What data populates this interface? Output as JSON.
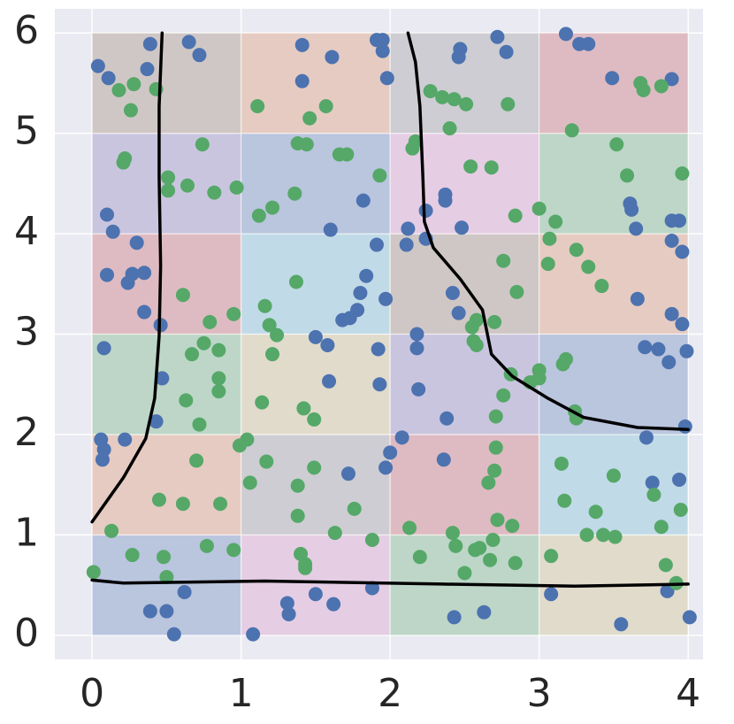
{
  "chart_data": {
    "type": "scatter",
    "xlim": [
      -0.25,
      4.1
    ],
    "ylim": [
      -0.24,
      6.24
    ],
    "xticks": [
      0,
      1,
      2,
      3,
      4
    ],
    "yticks": [
      0,
      1,
      2,
      3,
      4,
      5,
      6
    ],
    "grid": true,
    "background": "#eaeaf2",
    "cell_colors": [
      [
        "#4c72b0",
        "#da8bc3",
        "#55a868",
        "#ccb974"
      ],
      [
        "#dd8452",
        "#8c8c8c",
        "#c44e52",
        "#64b5cd"
      ],
      [
        "#55a868",
        "#ccb974",
        "#8172b3",
        "#4c72b0"
      ],
      [
        "#c44e52",
        "#64b5cd",
        "#937860",
        "#dd8452"
      ],
      [
        "#8172b3",
        "#4c72b0",
        "#da8bc3",
        "#55a868"
      ],
      [
        "#937860",
        "#dd8452",
        "#8c8c8c",
        "#c44e52"
      ]
    ],
    "series": [
      {
        "color": "#4c72b0",
        "x": [
          0.04,
          0.11,
          0.39,
          0.37,
          0.65,
          0.72,
          1.41,
          1.41,
          1.61,
          1.91,
          1.95,
          1.95,
          1.98,
          2.47,
          2.46,
          2.72,
          2.78,
          3.18,
          3.27,
          3.33,
          3.49,
          3.89,
          0.1,
          0.14,
          0.3,
          0.1,
          0.27,
          0.24,
          0.35,
          0.35,
          0.46,
          0.08,
          0.47,
          0.43,
          0.06,
          0.08,
          0.07,
          0.22,
          1.82,
          1.6,
          1.91,
          1.84,
          1.8,
          1.78,
          1.73,
          1.68,
          1.97,
          1.5,
          1.58,
          1.92,
          1.59,
          1.93,
          2.08,
          2.0,
          1.97,
          1.72,
          2.24,
          2.12,
          2.24,
          2.11,
          2.37,
          2.37,
          2.48,
          2.42,
          2.46,
          2.18,
          2.18,
          2.19,
          2.38,
          2.36,
          3.65,
          3.62,
          3.61,
          3.89,
          3.94,
          3.89,
          3.96,
          3.66,
          3.89,
          3.96,
          3.71,
          3.8,
          3.87,
          3.99,
          3.98,
          3.72,
          3.76,
          3.94,
          0.62,
          0.39,
          0.5,
          0.55,
          1.08,
          1.31,
          1.32,
          1.5,
          1.62,
          1.88,
          2.43,
          2.63,
          3.08,
          3.55,
          3.86,
          4.01
        ],
        "y": [
          5.67,
          5.55,
          5.89,
          5.64,
          5.91,
          5.78,
          5.88,
          5.52,
          5.76,
          5.93,
          5.93,
          5.82,
          5.55,
          5.84,
          5.76,
          5.96,
          5.81,
          5.99,
          5.89,
          5.89,
          5.55,
          5.54,
          4.19,
          4.02,
          3.91,
          3.59,
          3.6,
          3.51,
          3.61,
          3.22,
          3.09,
          2.86,
          2.56,
          2.13,
          1.95,
          1.85,
          1.75,
          1.95,
          4.33,
          4.04,
          3.89,
          3.58,
          3.41,
          3.24,
          3.16,
          3.14,
          3.35,
          2.97,
          2.89,
          2.85,
          2.53,
          2.5,
          1.97,
          1.82,
          1.67,
          1.61,
          4.23,
          4.05,
          3.95,
          3.89,
          4.39,
          4.33,
          4.06,
          3.41,
          3.21,
          3.0,
          2.86,
          2.45,
          2.16,
          1.75,
          4.05,
          4.24,
          4.3,
          4.13,
          4.13,
          3.93,
          3.82,
          3.35,
          3.2,
          3.1,
          2.87,
          2.85,
          2.72,
          2.83,
          2.08,
          1.97,
          1.52,
          1.55,
          0.43,
          0.24,
          0.24,
          0.01,
          0.01,
          0.32,
          0.21,
          0.41,
          0.31,
          0.47,
          0.18,
          0.23,
          0.41,
          0.11,
          0.44,
          0.18
        ]
      },
      {
        "color": "#55a868",
        "x": [
          0.18,
          0.28,
          0.26,
          0.43,
          1.11,
          1.46,
          1.57,
          2.27,
          2.35,
          2.43,
          2.51,
          2.4,
          2.79,
          3.22,
          3.68,
          3.7,
          3.82,
          0.21,
          0.22,
          0.51,
          0.51,
          0.64,
          0.74,
          0.82,
          0.97,
          1.38,
          1.44,
          1.66,
          1.71,
          1.36,
          1.21,
          1.12,
          1.93,
          2.15,
          2.17,
          2.54,
          2.68,
          2.84,
          3.0,
          3.11,
          3.07,
          3.06,
          3.25,
          3.33,
          3.42,
          3.52,
          3.59,
          3.96,
          0.61,
          0.79,
          0.95,
          1.37,
          1.16,
          1.19,
          1.24,
          1.21,
          2.76,
          2.85,
          2.58,
          2.55,
          2.7,
          2.56,
          2.58,
          0.67,
          0.75,
          0.85,
          0.85,
          0.85,
          0.63,
          0.72,
          1.14,
          1.42,
          1.49,
          2.81,
          2.76,
          2.71,
          2.94,
          3.0,
          3.0,
          3.16,
          3.18,
          3.24,
          3.25,
          0.7,
          0.99,
          1.04,
          1.17,
          1.06,
          1.38,
          1.49,
          1.38,
          1.76,
          0.45,
          0.61,
          0.86,
          2.71,
          2.7,
          2.66,
          2.72,
          2.82,
          3.15,
          3.17,
          3.38,
          3.5,
          3.77,
          3.82,
          3.95,
          3.32,
          3.43,
          3.51,
          0.13,
          0.01,
          0.27,
          0.48,
          0.5,
          0.77,
          0.95,
          1.4,
          1.43,
          1.43,
          1.63,
          1.88,
          2.13,
          2.2,
          2.42,
          2.44,
          2.57,
          2.6,
          2.69,
          2.5,
          2.67,
          2.84,
          3.08,
          3.85,
          3.92
        ],
        "y": [
          5.43,
          5.49,
          5.23,
          5.44,
          5.27,
          5.15,
          5.27,
          5.42,
          5.36,
          5.34,
          5.29,
          5.05,
          5.29,
          5.03,
          5.5,
          5.43,
          5.47,
          4.71,
          4.75,
          4.56,
          4.43,
          4.48,
          4.89,
          4.41,
          4.46,
          4.9,
          4.89,
          4.79,
          4.79,
          4.4,
          4.26,
          4.18,
          4.58,
          4.85,
          4.92,
          4.67,
          4.66,
          4.18,
          4.25,
          4.12,
          3.95,
          3.7,
          3.84,
          3.67,
          3.48,
          4.89,
          4.58,
          4.6,
          3.39,
          3.12,
          3.2,
          3.52,
          3.28,
          3.09,
          2.99,
          2.8,
          3.73,
          3.42,
          3.14,
          3.07,
          3.12,
          2.93,
          2.89,
          2.8,
          2.91,
          2.84,
          2.56,
          2.43,
          2.34,
          2.1,
          2.32,
          2.26,
          2.15,
          2.6,
          2.39,
          2.18,
          2.52,
          2.56,
          2.64,
          2.7,
          2.75,
          2.23,
          2.16,
          1.74,
          1.89,
          1.95,
          1.73,
          1.52,
          1.49,
          1.67,
          1.19,
          1.26,
          1.35,
          1.31,
          1.31,
          1.87,
          1.64,
          1.52,
          1.15,
          1.09,
          1.71,
          1.34,
          1.23,
          1.59,
          1.4,
          1.08,
          1.25,
          1.0,
          1.0,
          0.98,
          1.04,
          0.63,
          0.8,
          0.78,
          0.58,
          0.89,
          0.85,
          0.81,
          0.71,
          0.67,
          1.02,
          0.95,
          1.07,
          0.78,
          1.02,
          0.89,
          0.85,
          0.87,
          0.95,
          0.62,
          0.75,
          0.72,
          0.79,
          0.7,
          0.52
        ]
      }
    ],
    "lines": [
      {
        "color": "#000000",
        "x": [
          0.0,
          0.21,
          0.36,
          0.42,
          0.45,
          0.46,
          0.45,
          0.45,
          0.47
        ],
        "y": [
          1.13,
          1.57,
          1.96,
          2.36,
          2.98,
          3.68,
          4.56,
          5.27,
          6.0
        ]
      },
      {
        "color": "#000000",
        "x": [
          2.12,
          2.17,
          2.2,
          2.22,
          2.23,
          2.29,
          2.47,
          2.62,
          2.68,
          2.82,
          3.06,
          3.3,
          3.66,
          4.0
        ],
        "y": [
          6.0,
          5.71,
          5.27,
          4.56,
          4.12,
          3.86,
          3.55,
          3.24,
          2.8,
          2.58,
          2.36,
          2.17,
          2.07,
          2.05
        ]
      },
      {
        "color": "#000000",
        "x": [
          0.0,
          0.21,
          1.16,
          2.35,
          3.24,
          4.0
        ],
        "y": [
          0.55,
          0.52,
          0.54,
          0.51,
          0.49,
          0.51
        ]
      }
    ]
  }
}
